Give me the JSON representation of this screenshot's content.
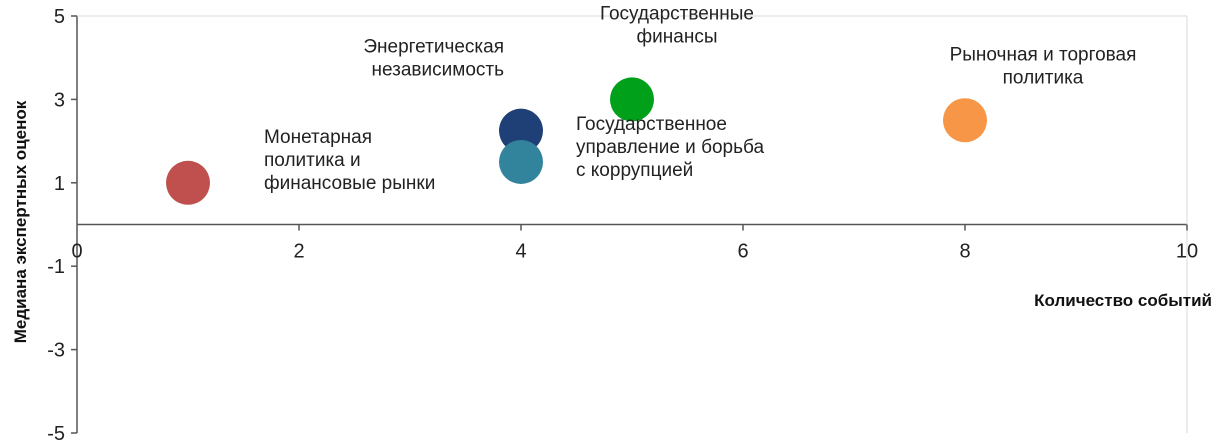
{
  "chart_data": {
    "type": "scatter",
    "title": "",
    "xlabel": "Количество событий",
    "ylabel": "Медиана экспертных оценок",
    "xlim": [
      0,
      10
    ],
    "ylim": [
      -5,
      5
    ],
    "x_ticks": [
      "0",
      "2",
      "4",
      "6",
      "8",
      "10"
    ],
    "y_ticks": [
      "5",
      "3",
      "1",
      "-1",
      "-3",
      "-5"
    ],
    "grid": false,
    "points": [
      {
        "label_lines": [
          "Монетарная",
          "политика и",
          "финансовые рынки"
        ],
        "x": 1,
        "y": 1,
        "color": "#c0504d"
      },
      {
        "label_lines": [
          "Энергетическая",
          "независимость"
        ],
        "x": 4,
        "y": 2.25,
        "color": "#1f3f77"
      },
      {
        "label_lines": [
          "Государственное",
          "управление и борьба",
          "с коррупцией"
        ],
        "x": 4,
        "y": 1.5,
        "color": "#31849b"
      },
      {
        "label_lines": [
          "Государственные",
          "финансы"
        ],
        "x": 5,
        "y": 3,
        "color": "#00a01a"
      },
      {
        "label_lines": [
          "Рыночная и торговая",
          "политика"
        ],
        "x": 8,
        "y": 2.5,
        "color": "#f79646"
      }
    ]
  }
}
